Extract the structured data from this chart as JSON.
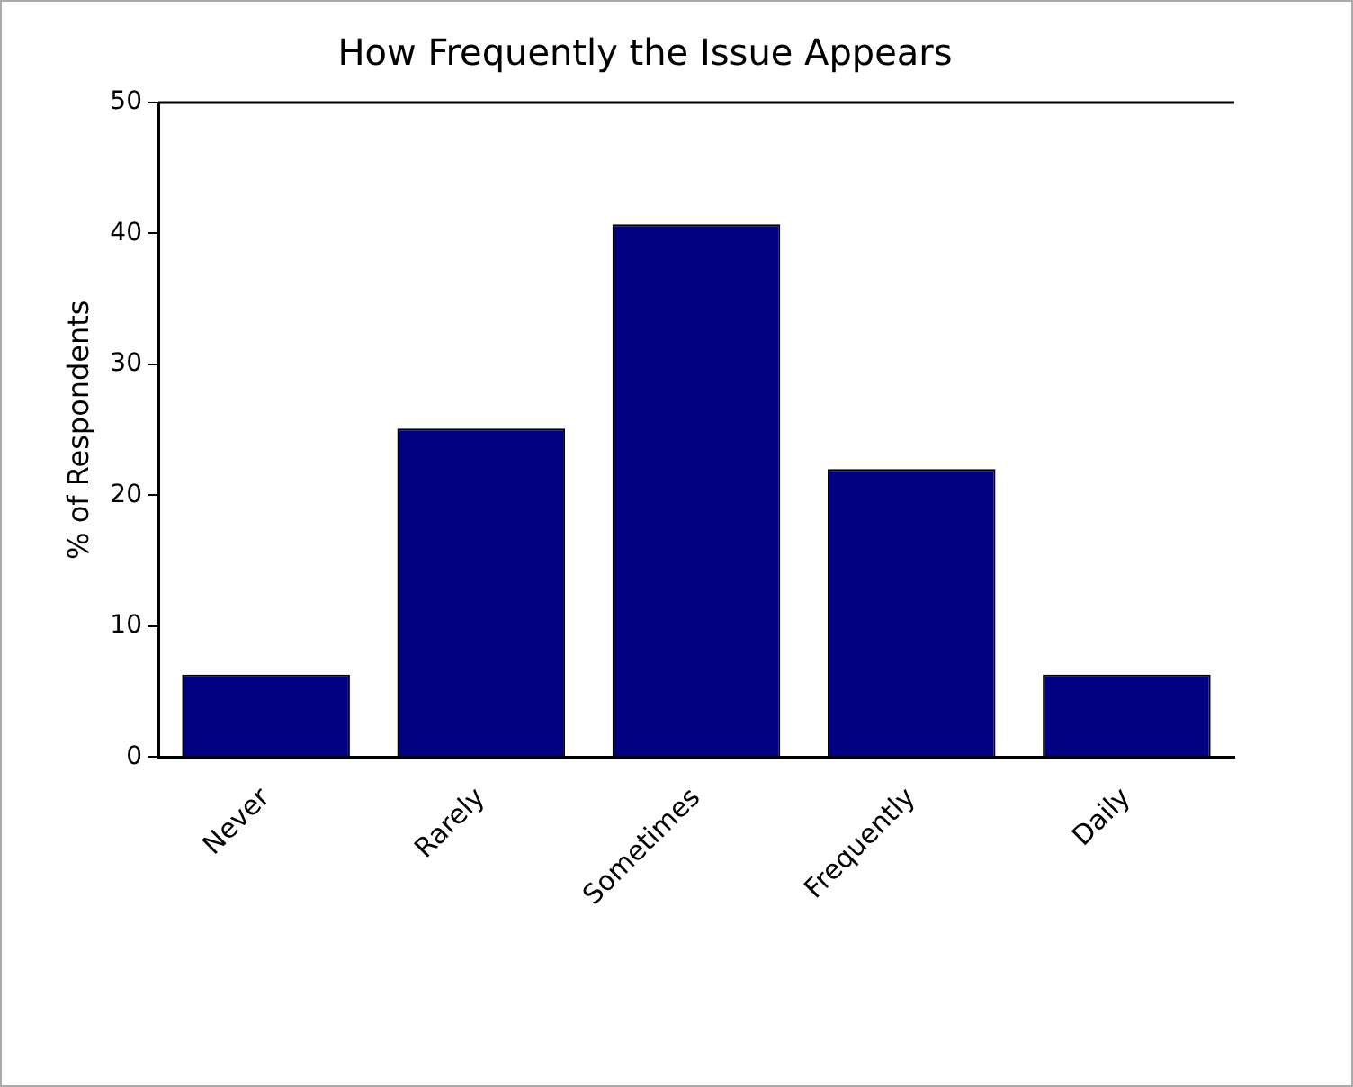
{
  "chart_data": {
    "type": "bar",
    "title": "How Frequently the Issue Appears",
    "ylabel": "% of Respondents",
    "categories": [
      "Never",
      "Rarely",
      "Sometimes",
      "Frequently",
      "Daily"
    ],
    "values": [
      6.3,
      25.1,
      40.7,
      22.0,
      6.3
    ],
    "color": "#000080",
    "ylim": [
      0,
      50
    ],
    "yticks": [
      0,
      10,
      20,
      30,
      40,
      50
    ],
    "grid": false,
    "legend": false
  }
}
